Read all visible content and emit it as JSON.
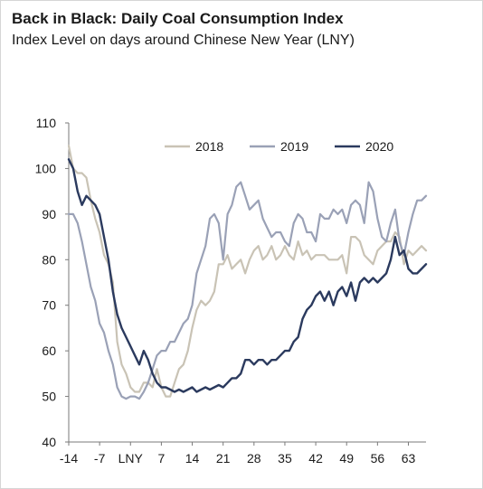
{
  "title": "Back in Black: Daily Coal Consumption Index",
  "subtitle": "Index Level on days around Chinese New Year (LNY)",
  "chart_data": {
    "type": "line",
    "title": "Back in Black: Daily Coal Consumption Index",
    "subtitle": "Index Level on days around Chinese New Year (LNY)",
    "xlabel": "",
    "ylabel": "",
    "xlim": [
      -14,
      67
    ],
    "ylim": [
      40,
      110
    ],
    "y_ticks": [
      40,
      50,
      60,
      70,
      80,
      90,
      100,
      110
    ],
    "x_ticks": [
      {
        "value": -14,
        "label": "-14"
      },
      {
        "value": -7,
        "label": "-7"
      },
      {
        "value": 0,
        "label": "LNY"
      },
      {
        "value": 7,
        "label": "7"
      },
      {
        "value": 14,
        "label": "14"
      },
      {
        "value": 21,
        "label": "21"
      },
      {
        "value": 28,
        "label": "28"
      },
      {
        "value": 35,
        "label": "35"
      },
      {
        "value": 42,
        "label": "42"
      },
      {
        "value": 49,
        "label": "49"
      },
      {
        "value": 56,
        "label": "56"
      },
      {
        "value": 63,
        "label": "63"
      }
    ],
    "grid": false,
    "legend_position": "top-center",
    "series": [
      {
        "name": "2018",
        "color": "#c9c3b5",
        "x": [
          -14,
          -13,
          -12,
          -11,
          -10,
          -9,
          -8,
          -7,
          -6,
          -5,
          -4,
          -3,
          -2,
          -1,
          0,
          1,
          2,
          3,
          4,
          5,
          6,
          7,
          8,
          9,
          10,
          11,
          12,
          13,
          14,
          15,
          16,
          17,
          18,
          19,
          20,
          21,
          22,
          23,
          24,
          25,
          26,
          27,
          28,
          29,
          30,
          31,
          32,
          33,
          34,
          35,
          36,
          37,
          38,
          39,
          40,
          41,
          42,
          43,
          44,
          45,
          46,
          47,
          48,
          49,
          50,
          51,
          52,
          53,
          54,
          55,
          56,
          57,
          58,
          59,
          60,
          61,
          62,
          63,
          64,
          65,
          66,
          67
        ],
        "values": [
          105,
          100,
          99,
          99,
          98,
          93,
          89,
          86,
          81,
          79,
          75,
          62,
          57,
          55,
          52,
          51,
          51,
          53,
          53,
          52,
          56,
          52,
          50,
          50,
          53,
          56,
          57,
          60,
          65,
          69,
          71,
          70,
          71,
          73,
          79,
          79,
          81,
          78,
          79,
          80,
          77,
          80,
          82,
          83,
          80,
          81,
          83,
          80,
          81,
          83,
          81,
          80,
          84,
          81,
          82,
          80,
          81,
          81,
          81,
          80,
          80,
          80,
          81,
          77,
          85,
          85,
          84,
          81,
          80,
          79,
          82,
          83,
          84,
          84,
          86,
          85,
          79,
          82,
          81,
          82,
          83,
          82
        ]
      },
      {
        "name": "2019",
        "color": "#9aa1b6",
        "x": [
          -14,
          -13,
          -12,
          -11,
          -10,
          -9,
          -8,
          -7,
          -6,
          -5,
          -4,
          -3,
          -2,
          -1,
          0,
          1,
          2,
          3,
          4,
          5,
          6,
          7,
          8,
          9,
          10,
          11,
          12,
          13,
          14,
          15,
          16,
          17,
          18,
          19,
          20,
          21,
          22,
          23,
          24,
          25,
          26,
          27,
          28,
          29,
          30,
          31,
          32,
          33,
          34,
          35,
          36,
          37,
          38,
          39,
          40,
          41,
          42,
          43,
          44,
          45,
          46,
          47,
          48,
          49,
          50,
          51,
          52,
          53,
          54,
          55,
          56,
          57,
          58,
          59,
          60,
          61,
          62,
          63,
          64,
          65,
          66,
          67
        ],
        "values": [
          90,
          90,
          88,
          84,
          79,
          74,
          71,
          66,
          64,
          60,
          57,
          52,
          50,
          49.5,
          50,
          50,
          49.5,
          51,
          53,
          56,
          59,
          60,
          60,
          62,
          62,
          64,
          66,
          67,
          70,
          77,
          80,
          83,
          89,
          90,
          88,
          80,
          90,
          92,
          96,
          97,
          94,
          91,
          92,
          93,
          89,
          87,
          85,
          86,
          86,
          84,
          83,
          88,
          90,
          89,
          86,
          86,
          84,
          90,
          89,
          89,
          91,
          90,
          91,
          88,
          92,
          93,
          92,
          88,
          97,
          95,
          89,
          85,
          84,
          88,
          91,
          84,
          81,
          86,
          90,
          93,
          93,
          94
        ]
      },
      {
        "name": "2020",
        "color": "#2b3a5e",
        "x": [
          -14,
          -13,
          -12,
          -11,
          -10,
          -9,
          -8,
          -7,
          -6,
          -5,
          -4,
          -3,
          -2,
          -1,
          0,
          1,
          2,
          3,
          4,
          5,
          6,
          7,
          8,
          9,
          10,
          11,
          12,
          13,
          14,
          15,
          16,
          17,
          18,
          19,
          20,
          21,
          22,
          23,
          24,
          25,
          26,
          27,
          28,
          29,
          30,
          31,
          32,
          33,
          34,
          35,
          36,
          37,
          38,
          39,
          40,
          41,
          42,
          43,
          44,
          45,
          46,
          47,
          48,
          49,
          50,
          51,
          52,
          53,
          54,
          55,
          56,
          57,
          58,
          59,
          60,
          61,
          62,
          63,
          64,
          65,
          66,
          67
        ],
        "values": [
          102,
          100,
          95,
          92,
          94,
          93,
          92,
          90,
          85,
          80,
          73,
          68,
          65,
          63,
          61,
          59,
          57,
          60,
          58,
          55,
          53,
          52,
          52,
          51.5,
          51,
          51.5,
          51,
          51.5,
          52,
          51,
          51.5,
          52,
          51.5,
          52,
          52.5,
          52,
          53,
          54,
          54,
          55,
          58,
          58,
          57,
          58,
          58,
          57,
          58,
          58,
          59,
          60,
          60,
          62,
          63,
          67,
          69,
          70,
          72,
          73,
          71,
          73,
          70,
          73,
          74,
          72,
          75,
          71,
          75,
          76,
          75,
          76,
          75,
          76,
          77,
          80,
          85,
          81,
          82,
          78,
          77,
          77,
          78,
          79
        ]
      }
    ]
  }
}
